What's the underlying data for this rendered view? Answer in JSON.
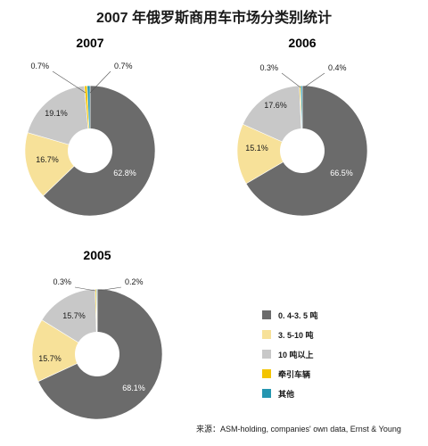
{
  "title": "2007 年俄罗斯商用车市场分类别统计",
  "source": "来源：ASM-holding, companies' own data, Ernst & Young",
  "colors": {
    "dark": "#6b6b6b",
    "light_yellow": "#f7e199",
    "light_gray": "#c8c8c8",
    "yellow": "#f3c400",
    "teal": "#2596b0"
  },
  "chart_data": [
    {
      "type": "pie",
      "title": "2007",
      "slices": [
        {
          "name": "0.4-3.5 吨",
          "value": 62.8,
          "label": "62.8%"
        },
        {
          "name": "3.5-10 吨",
          "value": 16.7,
          "label": "16.7%"
        },
        {
          "name": "10 吨以上",
          "value": 19.1,
          "label": "19.1%"
        },
        {
          "name": "牵引车辆",
          "value": 0.7,
          "label": "0.7%"
        },
        {
          "name": "其他",
          "value": 0.7,
          "label": "0.7%"
        }
      ]
    },
    {
      "type": "pie",
      "title": "2006",
      "slices": [
        {
          "name": "0.4-3.5 吨",
          "value": 66.5,
          "label": "66.5%"
        },
        {
          "name": "3.5-10 吨",
          "value": 15.1,
          "label": "15.1%"
        },
        {
          "name": "10 吨以上",
          "value": 17.6,
          "label": "17.6%"
        },
        {
          "name": "牵引车辆",
          "value": 0.3,
          "label": "0.3%"
        },
        {
          "name": "其他",
          "value": 0.4,
          "label": "0.4%"
        }
      ]
    },
    {
      "type": "pie",
      "title": "2005",
      "slices": [
        {
          "name": "0.4-3.5 吨",
          "value": 68.1,
          "label": "68.1%"
        },
        {
          "name": "3.5-10 吨",
          "value": 15.7,
          "label": "15.7%"
        },
        {
          "name": "10 吨以上",
          "value": 15.7,
          "label": "15.7%"
        },
        {
          "name": "牵引车辆",
          "value": 0.3,
          "label": "0.3%"
        },
        {
          "name": "其他",
          "value": 0.2,
          "label": "0.2%"
        }
      ]
    }
  ],
  "legend": [
    {
      "label": "0. 4-3. 5 吨",
      "color": "#6b6b6b"
    },
    {
      "label": "3. 5-10 吨",
      "color": "#f7e199"
    },
    {
      "label": "10 吨以上",
      "color": "#c8c8c8"
    },
    {
      "label": "牵引车辆",
      "color": "#f3c400"
    },
    {
      "label": "其他",
      "color": "#2596b0"
    }
  ]
}
